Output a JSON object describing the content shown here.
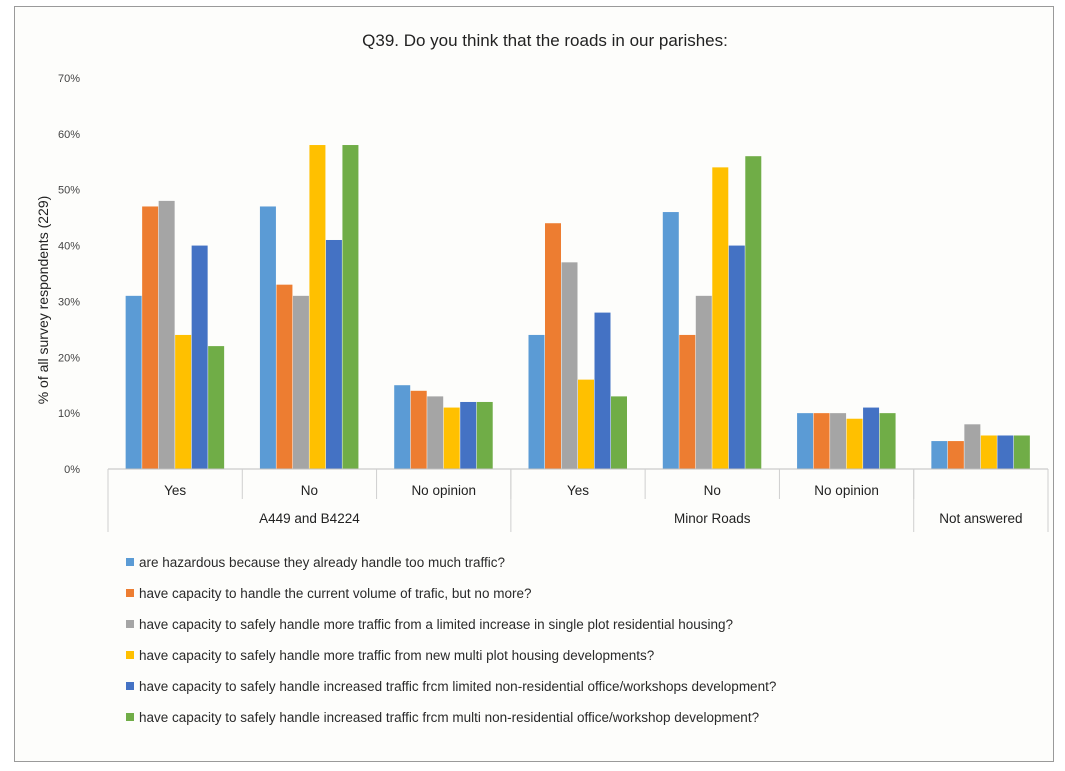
{
  "chart_data": {
    "type": "bar",
    "title": "Q39.  Do you think that the roads in our parishes:",
    "ylabel": "% of all survey respondents (229)",
    "xlabel": "",
    "ylim": [
      0,
      70
    ],
    "y_ticks": [
      "0%",
      "10%",
      "20%",
      "30%",
      "40%",
      "50%",
      "60%",
      "70%"
    ],
    "grid": false,
    "legend_position": "bottom",
    "categories": [
      "Yes",
      "No",
      "No opinion",
      "Yes",
      "No",
      "No opinion",
      "Not answered"
    ],
    "groups": [
      {
        "label": "A449 and B4224",
        "categories": [
          "Yes",
          "No",
          "No opinion"
        ]
      },
      {
        "label": "Minor Roads",
        "categories": [
          "Yes",
          "No",
          "No opinion"
        ]
      },
      {
        "label": "",
        "categories": [
          "Not answered"
        ]
      }
    ],
    "series": [
      {
        "name": "are hazardous because they already handle too much traffic?",
        "color": "#5b9bd5",
        "values": [
          31,
          47,
          15,
          24,
          46,
          10,
          5
        ]
      },
      {
        "name": "have capacity to handle the current volume of trafic, but no more?",
        "color": "#ed7d31",
        "values": [
          47,
          33,
          14,
          44,
          24,
          10,
          5
        ]
      },
      {
        "name": "have capacity to safely handle more traffic from a limited increase in single plot residential housing?",
        "color": "#a5a5a5",
        "values": [
          48,
          31,
          13,
          37,
          31,
          10,
          8
        ]
      },
      {
        "name": "have capacity to safely handle more traffic from new multi plot housing developments?",
        "color": "#ffc000",
        "values": [
          24,
          58,
          11,
          16,
          54,
          9,
          6
        ]
      },
      {
        "name": "have capacity to safely handle increased traffic frcm limited non-residential office/workshops development?",
        "color": "#4472c4",
        "values": [
          40,
          41,
          12,
          28,
          40,
          11,
          6
        ]
      },
      {
        "name": "have capacity to safely handle increased traffic frcm multi non-residential office/workshop development?",
        "color": "#70ad47",
        "values": [
          22,
          58,
          12,
          13,
          56,
          10,
          6
        ]
      }
    ]
  }
}
